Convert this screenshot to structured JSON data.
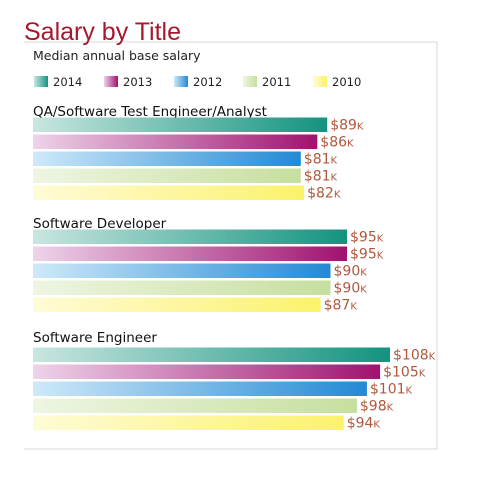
{
  "chart_data": {
    "type": "bar",
    "orientation": "horizontal",
    "title": "Salary by Title",
    "subtitle": "Median annual base salary",
    "value_prefix": "$",
    "value_suffix": "K",
    "xlim": [
      0,
      108
    ],
    "grid": false,
    "legend_position": "top",
    "categories": [
      "QA/Software Test Engineer/Analyst",
      "Software Developer",
      "Software Engineer"
    ],
    "series": [
      {
        "name": "2014",
        "color_light": "#c9e6e0",
        "color": "#13937f",
        "values": [
          89,
          95,
          108
        ]
      },
      {
        "name": "2013",
        "color_light": "#eed3ea",
        "color": "#a0126f",
        "values": [
          86,
          95,
          105
        ]
      },
      {
        "name": "2012",
        "color_light": "#cfe9f9",
        "color": "#2389d4",
        "values": [
          81,
          90,
          101
        ]
      },
      {
        "name": "2011",
        "color_light": "#eef5e2",
        "color": "#c6df9f",
        "values": [
          81,
          90,
          98
        ]
      },
      {
        "name": "2010",
        "color_light": "#fffbd6",
        "color": "#fbf26c",
        "values": [
          82,
          87,
          94
        ]
      }
    ]
  }
}
